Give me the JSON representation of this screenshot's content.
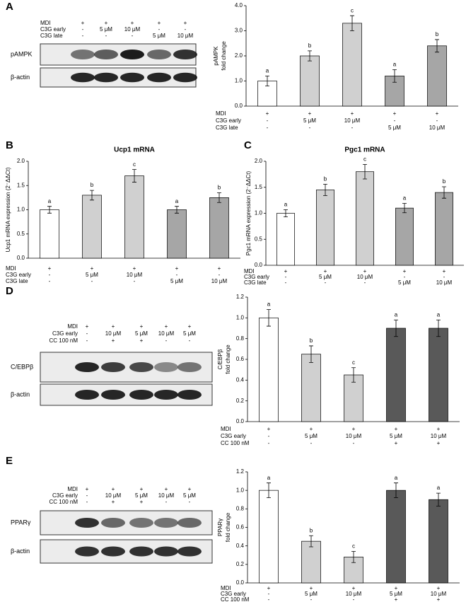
{
  "panel_labels": [
    "A",
    "B",
    "C",
    "D",
    "E"
  ],
  "blots": [
    {
      "conditions": [
        {
          "label": "MDI",
          "cells": [
            "+",
            "+",
            "+",
            "+",
            "+"
          ]
        },
        {
          "label": "C3G early",
          "cells": [
            "-",
            "5 μM",
            "10 μM",
            "-",
            "-"
          ]
        },
        {
          "label": "C3G late",
          "cells": [
            "-",
            "-",
            "-",
            "5 μM",
            "10 μM"
          ]
        }
      ],
      "bands": [
        "pAMPK",
        "β-actin"
      ]
    },
    {
      "conditions": [
        {
          "label": "MDI",
          "cells": [
            "+",
            "+",
            "+",
            "+",
            "+"
          ]
        },
        {
          "label": "C3G early",
          "cells": [
            "-",
            "10 μM",
            "5 μM",
            "10 μM",
            "5 μM"
          ]
        },
        {
          "label": "CC 100 nM",
          "cells": [
            "-",
            "+",
            "+",
            "-",
            "-"
          ]
        }
      ],
      "bands": [
        "C/EBPβ",
        "β-actin"
      ]
    },
    {
      "conditions": [
        {
          "label": "MDI",
          "cells": [
            "+",
            "+",
            "+",
            "+",
            "+"
          ]
        },
        {
          "label": "C3G early",
          "cells": [
            "-",
            "10 μM",
            "5 μM",
            "10 μM",
            "5 μM"
          ]
        },
        {
          "label": "CC 100 nM",
          "cells": [
            "-",
            "+",
            "+",
            "-",
            "-"
          ]
        }
      ],
      "bands": [
        "PPARγ",
        "β-actin"
      ]
    }
  ],
  "chart_data": [
    {
      "type": "bar",
      "ylabel": [
        "pAMPK",
        "fold change"
      ],
      "values": [
        1.0,
        2.0,
        3.3,
        1.2,
        2.4
      ],
      "errors": [
        0.2,
        0.2,
        0.3,
        0.25,
        0.25
      ],
      "letters": [
        "a",
        "b",
        "c",
        "a",
        "b"
      ],
      "colors": [
        "#ffffff",
        "#d0d0d0",
        "#d0d0d0",
        "#a6a6a6",
        "#a6a6a6"
      ],
      "ylim": [
        0,
        4
      ],
      "yticks": [
        {
          "value": 0,
          "label": "0.0"
        },
        {
          "value": 1,
          "label": "1.0"
        },
        {
          "value": 2,
          "label": "2.0"
        },
        {
          "value": 3,
          "label": "3.0"
        },
        {
          "value": 4,
          "label": "4.0"
        }
      ],
      "conditions": [
        {
          "label": "MDI",
          "cells": [
            "+",
            "+",
            "+",
            "+",
            "+"
          ]
        },
        {
          "label": "C3G early",
          "cells": [
            "-",
            "5 μM",
            "10 μM",
            "-",
            "-"
          ]
        },
        {
          "label": "C3G late",
          "cells": [
            "-",
            "-",
            "-",
            "5 μM",
            "10 μM"
          ]
        }
      ]
    },
    {
      "type": "bar",
      "title": "Ucp1 mRNA",
      "ylabel": [
        "Ucp1 mRNA expression (2⁻ΔΔCt)"
      ],
      "values": [
        1.0,
        1.3,
        1.7,
        1.0,
        1.25
      ],
      "errors": [
        0.07,
        0.1,
        0.13,
        0.07,
        0.1
      ],
      "letters": [
        "a",
        "b",
        "c",
        "a",
        "b"
      ],
      "colors": [
        "#ffffff",
        "#d0d0d0",
        "#d0d0d0",
        "#a6a6a6",
        "#a6a6a6"
      ],
      "ylim": [
        0,
        2
      ],
      "yticks": [
        {
          "value": 0,
          "label": "0.0"
        },
        0.5,
        {
          "value": 1,
          "label": "1.0"
        },
        1.5,
        {
          "value": 2,
          "label": "2.0"
        }
      ],
      "conditions": [
        {
          "label": "MDI",
          "cells": [
            "+",
            "+",
            "+",
            "+",
            "+"
          ]
        },
        {
          "label": "C3G early",
          "cells": [
            "-",
            "5 μM",
            "10 μM",
            "-",
            "-"
          ]
        },
        {
          "label": "C3G late",
          "cells": [
            "-",
            "-",
            "-",
            "5 μM",
            "10 μM"
          ]
        }
      ]
    },
    {
      "type": "bar",
      "title": "Pgc1 mRNA",
      "ylabel": [
        "Pgc1 mRNA expression (2⁻ΔΔCt)"
      ],
      "values": [
        1.0,
        1.45,
        1.8,
        1.1,
        1.4
      ],
      "errors": [
        0.07,
        0.11,
        0.14,
        0.09,
        0.11
      ],
      "letters": [
        "a",
        "b",
        "c",
        "a",
        "b"
      ],
      "colors": [
        "#ffffff",
        "#d0d0d0",
        "#d0d0d0",
        "#a6a6a6",
        "#a6a6a6"
      ],
      "ylim": [
        0,
        2
      ],
      "yticks": [
        {
          "value": 0,
          "label": "0.0"
        },
        0.5,
        {
          "value": 1,
          "label": "1.0"
        },
        1.5,
        {
          "value": 2,
          "label": "2.0"
        }
      ],
      "conditions": [
        {
          "label": "MDI",
          "cells": [
            "+",
            "+",
            "+",
            "+",
            "+"
          ]
        },
        {
          "label": "C3G early",
          "cells": [
            "-",
            "5 μM",
            "10 μM",
            "-",
            "-"
          ]
        },
        {
          "label": "C3G late",
          "cells": [
            "-",
            "-",
            "-",
            "5 μM",
            "10 μM"
          ]
        }
      ]
    },
    {
      "type": "bar",
      "ylabel": [
        "C/EBPβ",
        "fold change"
      ],
      "values": [
        1.0,
        0.65,
        0.45,
        0.9,
        0.9
      ],
      "errors": [
        0.08,
        0.08,
        0.07,
        0.08,
        0.08
      ],
      "letters": [
        "a",
        "b",
        "c",
        "a",
        "a"
      ],
      "colors": [
        "#ffffff",
        "#d0d0d0",
        "#d0d0d0",
        "#595959",
        "#595959"
      ],
      "ylim": [
        0,
        1.2
      ],
      "yticks": [
        {
          "value": 0,
          "label": "0.0"
        },
        0.2,
        0.4,
        0.6,
        0.8,
        {
          "value": 1,
          "label": "1.0"
        },
        1.2
      ],
      "conditions": [
        {
          "label": "MDI",
          "cells": [
            "+",
            "+",
            "+",
            "+",
            "+"
          ]
        },
        {
          "label": "C3G early",
          "cells": [
            "-",
            "5 μM",
            "10 μM",
            "5 μM",
            "10 μM"
          ]
        },
        {
          "label": "CC 100 nM",
          "cells": [
            "-",
            "-",
            "-",
            "+",
            "+"
          ]
        }
      ]
    },
    {
      "type": "bar",
      "ylabel": [
        "PPARγ",
        "fold change"
      ],
      "values": [
        1.0,
        0.45,
        0.28,
        1.0,
        0.9
      ],
      "errors": [
        0.08,
        0.06,
        0.06,
        0.08,
        0.07
      ],
      "letters": [
        "a",
        "b",
        "c",
        "a",
        "a"
      ],
      "colors": [
        "#ffffff",
        "#d0d0d0",
        "#d0d0d0",
        "#595959",
        "#595959"
      ],
      "ylim": [
        0,
        1.2
      ],
      "yticks": [
        {
          "value": 0,
          "label": "0.0"
        },
        0.2,
        0.4,
        0.6,
        0.8,
        {
          "value": 1,
          "label": "1.0"
        },
        1.2
      ],
      "conditions": [
        {
          "label": "MDI",
          "cells": [
            "+",
            "+",
            "+",
            "+",
            "+"
          ]
        },
        {
          "label": "C3G early",
          "cells": [
            "-",
            "5 μM",
            "10 μM",
            "5 μM",
            "10 μM"
          ]
        },
        {
          "label": "CC 100 nM",
          "cells": [
            "-",
            "-",
            "-",
            "+",
            "+"
          ]
        }
      ]
    }
  ]
}
